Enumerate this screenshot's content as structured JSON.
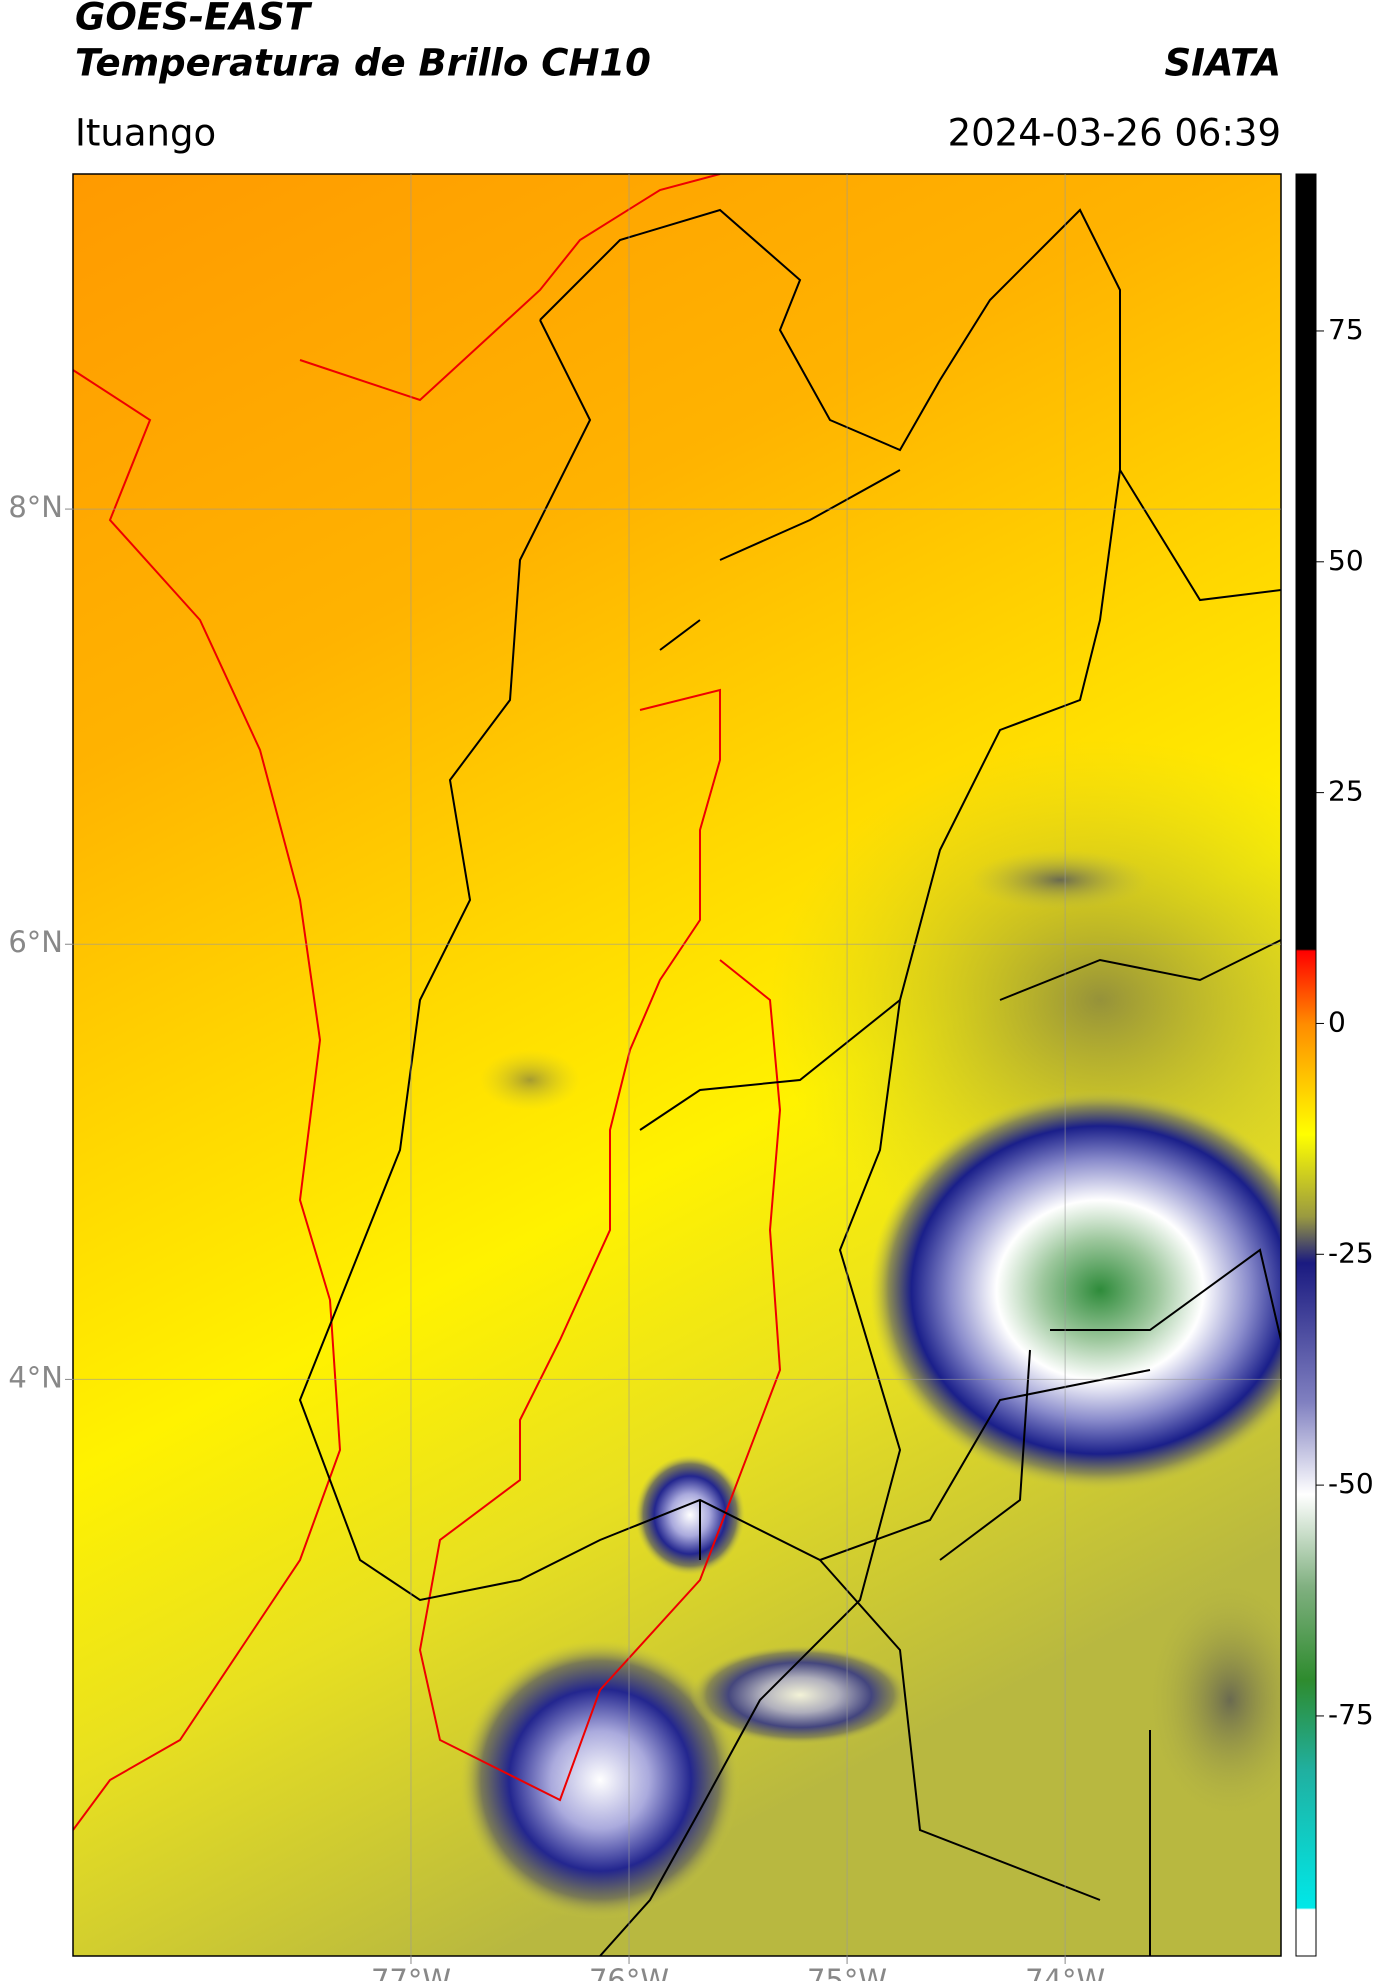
{
  "chart_data": {
    "type": "map",
    "title": "GOES-EAST",
    "subtitle": "Temperatura de Brillo CH10",
    "source": "SIATA",
    "region": "Ituango",
    "datetime": "2024-03-26 06:39",
    "xlim": [
      -78.55,
      -73.01
    ],
    "ylim": [
      1.35,
      9.54
    ],
    "xticks": [
      {
        "value": -77,
        "label": "77°W"
      },
      {
        "value": -76,
        "label": "76°W"
      },
      {
        "value": -75,
        "label": "75°W"
      },
      {
        "value": -74,
        "label": "74°W"
      }
    ],
    "yticks": [
      {
        "value": 8,
        "label": "8°N"
      },
      {
        "value": 6,
        "label": "6°N"
      },
      {
        "value": 4,
        "label": "4°N"
      }
    ],
    "grid": true,
    "colorbar": {
      "lim": [
        -101,
        92
      ],
      "ticks": [
        75,
        50,
        25,
        0,
        -25,
        -50,
        -75
      ]
    }
  }
}
